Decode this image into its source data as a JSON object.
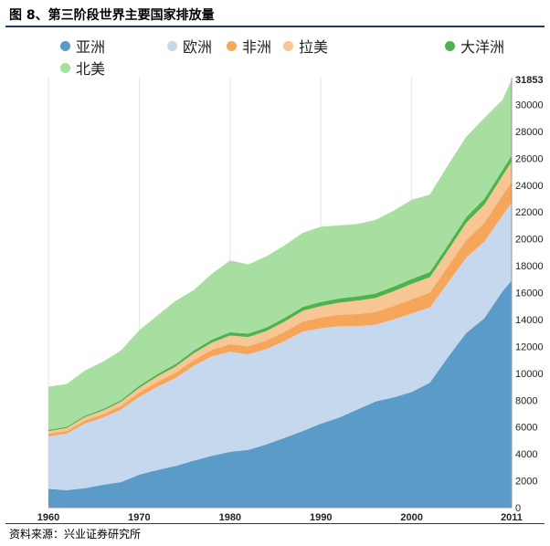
{
  "figure": {
    "title": "图 8、第三阶段世界主要国家排放量",
    "source": "资料来源：兴业证券研究所"
  },
  "chart_data": {
    "type": "area",
    "stacked": true,
    "x": [
      1960,
      1962,
      1964,
      1966,
      1968,
      1970,
      1972,
      1974,
      1976,
      1978,
      1980,
      1982,
      1984,
      1986,
      1988,
      1990,
      1992,
      1994,
      1996,
      1998,
      2000,
      2002,
      2004,
      2006,
      2008,
      2010,
      2011
    ],
    "xticks": [
      1960,
      1970,
      1980,
      1990,
      2000,
      2011
    ],
    "yticks": [
      0,
      2000,
      4000,
      6000,
      8000,
      10000,
      12000,
      14000,
      16000,
      18000,
      20000,
      22000,
      24000,
      26000,
      28000,
      30000
    ],
    "ymax_label": "31853",
    "ylim": [
      0,
      32000
    ],
    "grid": true,
    "legend_position": "top",
    "series": [
      {
        "name": "亚洲",
        "color": "#5b9bc8",
        "values": [
          1400,
          1300,
          1450,
          1700,
          1900,
          2450,
          2800,
          3100,
          3500,
          3850,
          4150,
          4300,
          4700,
          5200,
          5700,
          6250,
          6700,
          7300,
          7900,
          8200,
          8600,
          9300,
          11200,
          13000,
          14100,
          16100,
          16900
        ]
      },
      {
        "name": "欧洲",
        "color": "#c5d8ee",
        "values": [
          3900,
          4200,
          4800,
          5000,
          5400,
          5800,
          6200,
          6550,
          7050,
          7400,
          7450,
          7100,
          7100,
          7200,
          7400,
          7100,
          6800,
          6200,
          5700,
          5800,
          5850,
          5600,
          5550,
          5600,
          5700,
          5650,
          5800
        ]
      },
      {
        "name": "非洲",
        "color": "#f5a65b",
        "values": [
          200,
          200,
          230,
          250,
          280,
          320,
          360,
          400,
          440,
          480,
          560,
          600,
          640,
          700,
          750,
          800,
          850,
          900,
          950,
          1000,
          1050,
          1100,
          1200,
          1300,
          1400,
          1500,
          1550
        ]
      },
      {
        "name": "拉美",
        "color": "#f8c594",
        "values": [
          200,
          220,
          250,
          270,
          300,
          350,
          400,
          450,
          500,
          550,
          650,
          700,
          700,
          750,
          800,
          850,
          900,
          1000,
          1050,
          1100,
          1150,
          1150,
          1200,
          1300,
          1350,
          1450,
          1500
        ]
      },
      {
        "name": "大洋洲",
        "color": "#4db34d",
        "values": [
          80,
          90,
          100,
          110,
          120,
          150,
          170,
          190,
          200,
          220,
          240,
          250,
          260,
          270,
          290,
          300,
          310,
          320,
          330,
          340,
          360,
          380,
          400,
          420,
          430,
          440,
          450
        ]
      },
      {
        "name": "北美",
        "color": "#a6dfa0",
        "values": [
          3220,
          3190,
          3370,
          3520,
          3700,
          4130,
          4370,
          4700,
          4510,
          4900,
          5350,
          5150,
          5300,
          5400,
          5510,
          5600,
          5440,
          5380,
          5470,
          5660,
          5890,
          5770,
          5950,
          5980,
          6020,
          5210,
          5653
        ]
      }
    ]
  }
}
